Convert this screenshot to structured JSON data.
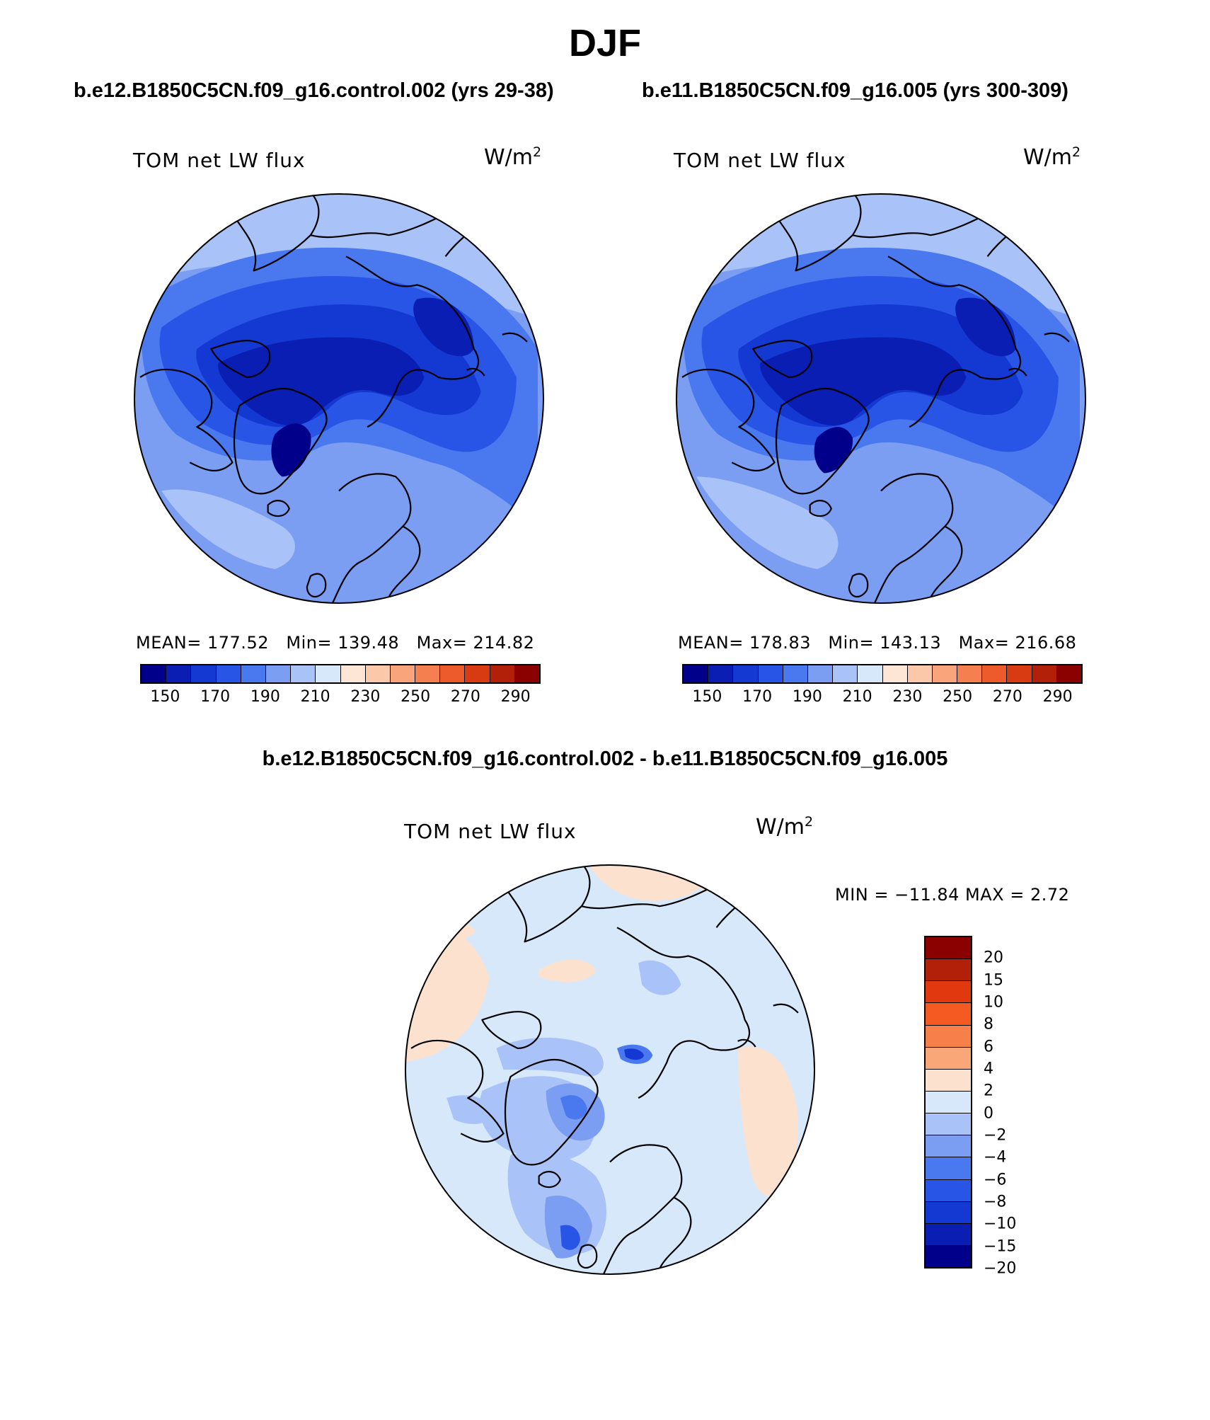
{
  "figure": {
    "title": "DJF"
  },
  "panels": [
    {
      "run_title": "b.e12.B1850C5CN.f09_g16.control.002 (yrs 29-38)",
      "var_label": "TOM net LW flux",
      "units": "W/m",
      "units_exp": "2",
      "mean_label": "MEAN=",
      "mean": "177.52",
      "min_label": "Min=",
      "min": "139.48",
      "max_label": "Max=",
      "max": "214.82"
    },
    {
      "run_title": "b.e11.B1850C5CN.f09_g16.005 (yrs 300-309)",
      "var_label": "TOM net LW flux",
      "units": "W/m",
      "units_exp": "2",
      "mean_label": "MEAN=",
      "mean": "178.83",
      "min_label": "Min=",
      "min": "143.13",
      "max_label": "Max=",
      "max": "216.68"
    }
  ],
  "diff_panel": {
    "title": "b.e12.B1850C5CN.f09_g16.control.002 - b.e11.B1850C5CN.f09_g16.005",
    "var_label": "TOM net LW flux",
    "units": "W/m",
    "units_exp": "2",
    "minmax_text": "MIN = −11.84 MAX =    2.72"
  },
  "abs_colorbar": {
    "colors": [
      "#00008b",
      "#0a1eb4",
      "#1438d2",
      "#2855e6",
      "#4a78ef",
      "#7b9df2",
      "#a9c2f7",
      "#d7e8fb",
      "#fde6d6",
      "#fbc9a9",
      "#f9a47a",
      "#f57f4f",
      "#ed5a2c",
      "#d83a12",
      "#b3200a",
      "#8b0000"
    ],
    "tick_labels": [
      "150",
      "170",
      "190",
      "210",
      "230",
      "250",
      "270",
      "290"
    ]
  },
  "diff_colorbar": {
    "colors": [
      "#8b0000",
      "#b3200a",
      "#e0380f",
      "#f55a22",
      "#f7804a",
      "#f9a679",
      "#fde1cf",
      "#d7e8fb",
      "#a9c2f7",
      "#7b9df2",
      "#4a78ef",
      "#2855e6",
      "#1438d2",
      "#0a1eb4",
      "#00008b"
    ],
    "tick_labels": [
      "20",
      "15",
      "10",
      "8",
      "6",
      "4",
      "2",
      "0",
      "−2",
      "−4",
      "−6",
      "−8",
      "−10",
      "−15",
      "−20"
    ]
  },
  "icons": {
    "map_projection": "north-polar-stereographic-map"
  }
}
